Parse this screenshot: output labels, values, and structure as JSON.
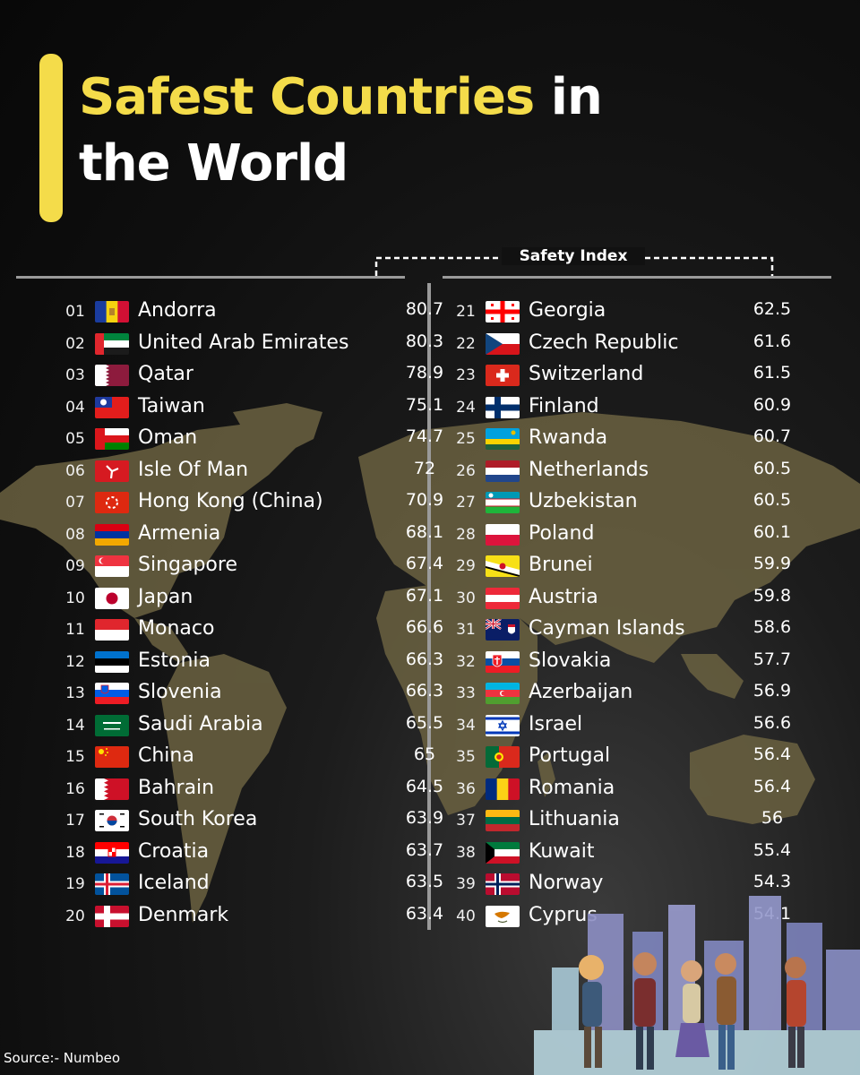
{
  "header": {
    "title_highlight": "Safest Countries",
    "title_rest_1": " in",
    "title_rest_2": "the World"
  },
  "chart_data": {
    "type": "table",
    "column_label": "Safety Index",
    "rows": [
      {
        "rank": "01",
        "country": "Andorra",
        "value": 80.7,
        "flag": "andorra-flag"
      },
      {
        "rank": "02",
        "country": "United Arab Emirates",
        "value": 80.3,
        "flag": "uae-flag"
      },
      {
        "rank": "03",
        "country": "Qatar",
        "value": 78.9,
        "flag": "qatar-flag"
      },
      {
        "rank": "04",
        "country": "Taiwan",
        "value": 75.1,
        "flag": "taiwan-flag"
      },
      {
        "rank": "05",
        "country": "Oman",
        "value": 74.7,
        "flag": "oman-flag"
      },
      {
        "rank": "06",
        "country": "Isle Of Man",
        "value": 72,
        "flag": "isle-of-man-flag"
      },
      {
        "rank": "07",
        "country": "Hong Kong (China)",
        "value": 70.9,
        "flag": "hong-kong-flag"
      },
      {
        "rank": "08",
        "country": "Armenia",
        "value": 68.1,
        "flag": "armenia-flag"
      },
      {
        "rank": "09",
        "country": "Singapore",
        "value": 67.4,
        "flag": "singapore-flag"
      },
      {
        "rank": "10",
        "country": "Japan",
        "value": 67.1,
        "flag": "japan-flag"
      },
      {
        "rank": "11",
        "country": "Monaco",
        "value": 66.6,
        "flag": "monaco-flag"
      },
      {
        "rank": "12",
        "country": "Estonia",
        "value": 66.3,
        "flag": "estonia-flag"
      },
      {
        "rank": "13",
        "country": "Slovenia",
        "value": 66.3,
        "flag": "slovenia-flag"
      },
      {
        "rank": "14",
        "country": "Saudi Arabia",
        "value": 65.5,
        "flag": "saudi-arabia-flag"
      },
      {
        "rank": "15",
        "country": "China",
        "value": 65,
        "flag": "china-flag"
      },
      {
        "rank": "16",
        "country": "Bahrain",
        "value": 64.5,
        "flag": "bahrain-flag"
      },
      {
        "rank": "17",
        "country": "South Korea",
        "value": 63.9,
        "flag": "south-korea-flag"
      },
      {
        "rank": "18",
        "country": "Croatia",
        "value": 63.7,
        "flag": "croatia-flag"
      },
      {
        "rank": "19",
        "country": "Iceland",
        "value": 63.5,
        "flag": "iceland-flag"
      },
      {
        "rank": "20",
        "country": "Denmark",
        "value": 63.4,
        "flag": "denmark-flag"
      },
      {
        "rank": "21",
        "country": "Georgia",
        "value": 62.5,
        "flag": "georgia-flag"
      },
      {
        "rank": "22",
        "country": "Czech Republic",
        "value": 61.6,
        "flag": "czech-republic-flag"
      },
      {
        "rank": "23",
        "country": "Switzerland",
        "value": 61.5,
        "flag": "switzerland-flag"
      },
      {
        "rank": "24",
        "country": "Finland",
        "value": 60.9,
        "flag": "finland-flag"
      },
      {
        "rank": "25",
        "country": "Rwanda",
        "value": 60.7,
        "flag": "rwanda-flag"
      },
      {
        "rank": "26",
        "country": "Netherlands",
        "value": 60.5,
        "flag": "netherlands-flag"
      },
      {
        "rank": "27",
        "country": "Uzbekistan",
        "value": 60.5,
        "flag": "uzbekistan-flag"
      },
      {
        "rank": "28",
        "country": "Poland",
        "value": 60.1,
        "flag": "poland-flag"
      },
      {
        "rank": "29",
        "country": "Brunei",
        "value": 59.9,
        "flag": "brunei-flag"
      },
      {
        "rank": "30",
        "country": "Austria",
        "value": 59.8,
        "flag": "austria-flag"
      },
      {
        "rank": "31",
        "country": "Cayman Islands",
        "value": 58.6,
        "flag": "cayman-islands-flag"
      },
      {
        "rank": "32",
        "country": "Slovakia",
        "value": 57.7,
        "flag": "slovakia-flag"
      },
      {
        "rank": "33",
        "country": "Azerbaijan",
        "value": 56.9,
        "flag": "azerbaijan-flag"
      },
      {
        "rank": "34",
        "country": "Israel",
        "value": 56.6,
        "flag": "israel-flag"
      },
      {
        "rank": "35",
        "country": "Portugal",
        "value": 56.4,
        "flag": "portugal-flag"
      },
      {
        "rank": "36",
        "country": "Romania",
        "value": 56.4,
        "flag": "romania-flag"
      },
      {
        "rank": "37",
        "country": "Lithuania",
        "value": 56,
        "flag": "lithuania-flag"
      },
      {
        "rank": "38",
        "country": "Kuwait",
        "value": 55.4,
        "flag": "kuwait-flag"
      },
      {
        "rank": "39",
        "country": "Norway",
        "value": 54.3,
        "flag": "norway-flag"
      },
      {
        "rank": "40",
        "country": "Cyprus",
        "value": 54.1,
        "flag": "cyprus-flag"
      }
    ]
  },
  "footer": {
    "source": "Source:- Numbeo"
  },
  "colors": {
    "accent": "#f4dc4a",
    "map": "#6b6241",
    "divider": "#9a9a9a"
  }
}
